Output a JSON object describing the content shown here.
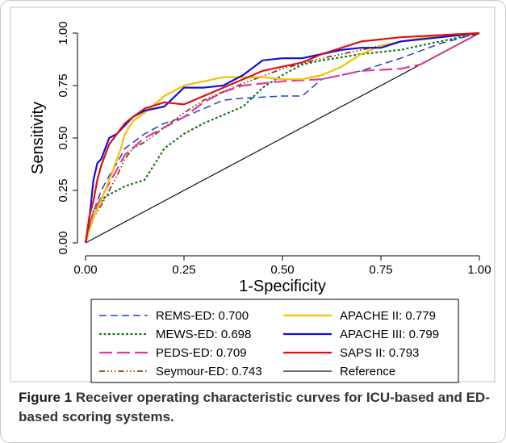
{
  "caption": {
    "label": "Figure 1",
    "text": "Receiver operating characteristic curves for ICU-based and ED-based scoring systems."
  },
  "chart_data": {
    "type": "line",
    "xlabel": "1-Specificity",
    "ylabel": "Sensitivity",
    "xlim": [
      0,
      1
    ],
    "ylim": [
      0,
      1
    ],
    "xticks": [
      "0.00",
      "0.25",
      "0.50",
      "0.75",
      "1.00"
    ],
    "yticks": [
      "0.00",
      "0.25",
      "0.50",
      "0.75",
      "1.00"
    ],
    "grid": false,
    "legend_position": "bottom",
    "series": [
      {
        "name": "REMS-ED: 0.700",
        "color": "#1f3fd6",
        "dash": "9,5",
        "width": 1.5,
        "x": [
          0,
          0.01,
          0.02,
          0.04,
          0.06,
          0.08,
          0.1,
          0.15,
          0.2,
          0.25,
          0.3,
          0.35,
          0.4,
          0.5,
          0.55,
          0.6,
          0.65,
          0.7,
          0.8,
          0.9,
          1.0
        ],
        "y": [
          0,
          0.08,
          0.15,
          0.25,
          0.32,
          0.38,
          0.45,
          0.52,
          0.57,
          0.6,
          0.64,
          0.68,
          0.69,
          0.7,
          0.7,
          0.78,
          0.8,
          0.82,
          0.88,
          0.95,
          1.0
        ]
      },
      {
        "name": "MEWS-ED: 0.698",
        "color": "#1a7a1a",
        "dash": "3,2.5",
        "width": 2.2,
        "x": [
          0,
          0.02,
          0.05,
          0.1,
          0.15,
          0.2,
          0.25,
          0.3,
          0.35,
          0.4,
          0.45,
          0.5,
          0.55,
          0.6,
          0.7,
          0.8,
          0.9,
          1.0
        ],
        "y": [
          0,
          0.15,
          0.22,
          0.27,
          0.3,
          0.45,
          0.52,
          0.57,
          0.61,
          0.65,
          0.74,
          0.8,
          0.85,
          0.87,
          0.9,
          0.92,
          0.96,
          1.0
        ]
      },
      {
        "name": "PEDS-ED: 0.709",
        "color": "#e23a96",
        "dash": "16,6",
        "width": 2.2,
        "x": [
          0,
          0.02,
          0.05,
          0.08,
          0.1,
          0.15,
          0.2,
          0.25,
          0.3,
          0.35,
          0.4,
          0.45,
          0.5,
          0.6,
          0.7,
          0.8,
          0.85,
          0.9,
          1.0
        ],
        "y": [
          0,
          0.15,
          0.25,
          0.35,
          0.42,
          0.5,
          0.55,
          0.6,
          0.67,
          0.72,
          0.75,
          0.76,
          0.77,
          0.78,
          0.82,
          0.83,
          0.85,
          0.9,
          1.0
        ]
      },
      {
        "name": "Seymour-ED: 0.743",
        "color": "#8a3a1a",
        "dash": "7,3,1.5,3,1.5,3,1.5,3",
        "width": 1.8,
        "x": [
          0,
          0.02,
          0.04,
          0.06,
          0.08,
          0.1,
          0.12,
          0.15,
          0.2,
          0.25,
          0.3,
          0.35,
          0.4,
          0.5,
          0.6,
          0.7,
          0.8,
          0.9,
          1.0
        ],
        "y": [
          0,
          0.12,
          0.18,
          0.25,
          0.32,
          0.4,
          0.45,
          0.48,
          0.55,
          0.62,
          0.68,
          0.72,
          0.76,
          0.83,
          0.88,
          0.92,
          0.96,
          0.98,
          1.0
        ]
      },
      {
        "name": "APACHE II: 0.779",
        "color": "#f2c200",
        "dash": "",
        "width": 2.2,
        "x": [
          0,
          0.02,
          0.05,
          0.07,
          0.09,
          0.1,
          0.12,
          0.15,
          0.2,
          0.25,
          0.3,
          0.35,
          0.4,
          0.45,
          0.5,
          0.55,
          0.6,
          0.65,
          0.7,
          0.75,
          0.8,
          0.9,
          1.0
        ],
        "y": [
          0,
          0.12,
          0.25,
          0.35,
          0.45,
          0.52,
          0.58,
          0.62,
          0.7,
          0.75,
          0.77,
          0.79,
          0.79,
          0.79,
          0.78,
          0.78,
          0.8,
          0.84,
          0.9,
          0.94,
          0.96,
          0.99,
          1.0
        ]
      },
      {
        "name": "APACHE III: 0.799",
        "color": "#1010d8",
        "dash": "",
        "width": 2.2,
        "x": [
          0,
          0.01,
          0.02,
          0.03,
          0.04,
          0.05,
          0.06,
          0.08,
          0.1,
          0.12,
          0.15,
          0.2,
          0.25,
          0.3,
          0.35,
          0.4,
          0.45,
          0.5,
          0.55,
          0.6,
          0.65,
          0.7,
          0.75,
          0.8,
          0.9,
          1.0
        ],
        "y": [
          0,
          0.12,
          0.3,
          0.38,
          0.4,
          0.45,
          0.5,
          0.52,
          0.56,
          0.6,
          0.63,
          0.65,
          0.74,
          0.74,
          0.75,
          0.8,
          0.87,
          0.88,
          0.88,
          0.9,
          0.92,
          0.93,
          0.93,
          0.96,
          0.98,
          1.0
        ]
      },
      {
        "name": "SAPS II: 0.793",
        "color": "#e01010",
        "dash": "",
        "width": 2.2,
        "x": [
          0,
          0.01,
          0.02,
          0.03,
          0.04,
          0.05,
          0.06,
          0.08,
          0.1,
          0.12,
          0.15,
          0.2,
          0.25,
          0.3,
          0.35,
          0.4,
          0.45,
          0.5,
          0.55,
          0.6,
          0.7,
          0.8,
          0.9,
          1.0
        ],
        "y": [
          0,
          0.13,
          0.2,
          0.3,
          0.37,
          0.42,
          0.47,
          0.52,
          0.57,
          0.6,
          0.64,
          0.67,
          0.66,
          0.7,
          0.74,
          0.78,
          0.82,
          0.84,
          0.86,
          0.9,
          0.96,
          0.98,
          0.99,
          1.0
        ]
      },
      {
        "name": "Reference",
        "color": "#111111",
        "dash": "",
        "width": 1.2,
        "x": [
          0,
          1
        ],
        "y": [
          0,
          1
        ]
      }
    ]
  }
}
